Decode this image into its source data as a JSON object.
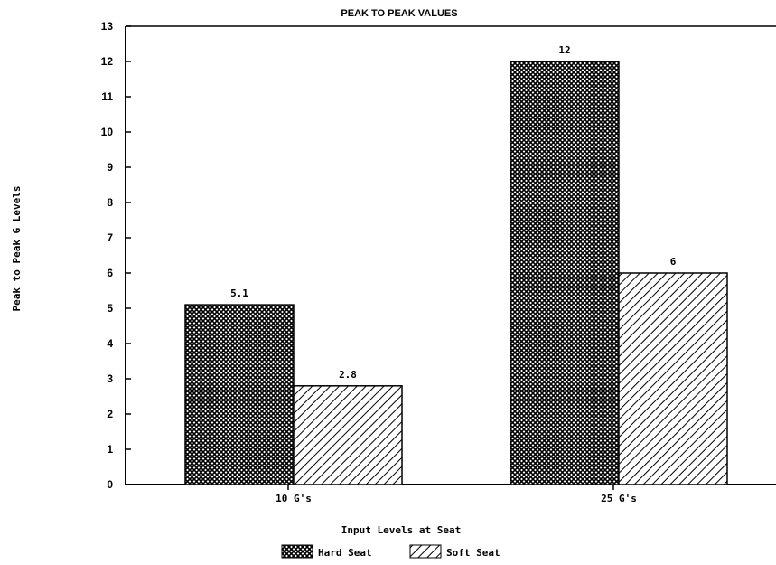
{
  "chart_data": {
    "type": "bar",
    "title": "PEAK TO PEAK VALUES",
    "xlabel": "Input Levels at Seat",
    "ylabel": "Peak to Peak G Levels",
    "categories": [
      "10 G's",
      "25 G's"
    ],
    "series": [
      {
        "name": "Hard Seat",
        "values": [
          5.1,
          12
        ],
        "labels": [
          "5.1",
          "12"
        ],
        "pattern": "crosshatch"
      },
      {
        "name": "Soft Seat",
        "values": [
          2.8,
          6
        ],
        "labels": [
          "2.8",
          "6"
        ],
        "pattern": "diagonal"
      }
    ],
    "ylim": [
      0,
      13
    ],
    "yticks": [
      "0",
      "1",
      "2",
      "3",
      "4",
      "5",
      "6",
      "7",
      "8",
      "9",
      "10",
      "11",
      "12",
      "13"
    ],
    "grid": false,
    "legend": "bottom-center"
  }
}
